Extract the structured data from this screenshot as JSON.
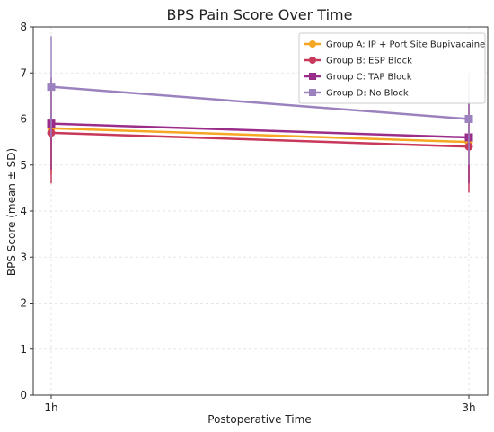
{
  "chart_data": {
    "type": "line",
    "title": "BPS Pain Score Over Time",
    "xlabel": "Postoperative Time",
    "ylabel": "BPS Score (mean ± SD)",
    "categories": [
      "1h",
      "3h"
    ],
    "ylim": [
      0,
      8
    ],
    "yticks": [
      0,
      1,
      2,
      3,
      4,
      5,
      6,
      7,
      8
    ],
    "grid": true,
    "legend_position": "top-right",
    "series": [
      {
        "name": "Group A: IP + Port Site Bupivacaine",
        "color": "#f5a623",
        "marker": "circle",
        "values": [
          5.8,
          5.5
        ],
        "sd": [
          1.0,
          0.9
        ]
      },
      {
        "name": "Group B: ESP Block",
        "color": "#c8385a",
        "marker": "circle",
        "values": [
          5.7,
          5.4
        ],
        "sd": [
          1.1,
          1.0
        ]
      },
      {
        "name": "Group C: TAP Block",
        "color": "#9b2d8a",
        "marker": "square",
        "values": [
          5.9,
          5.6
        ],
        "sd": [
          1.0,
          1.0
        ]
      },
      {
        "name": "Group D: No Block",
        "color": "#9b82bf",
        "marker": "square",
        "values": [
          6.7,
          6.0
        ],
        "sd": [
          1.1,
          1.0
        ]
      }
    ]
  }
}
